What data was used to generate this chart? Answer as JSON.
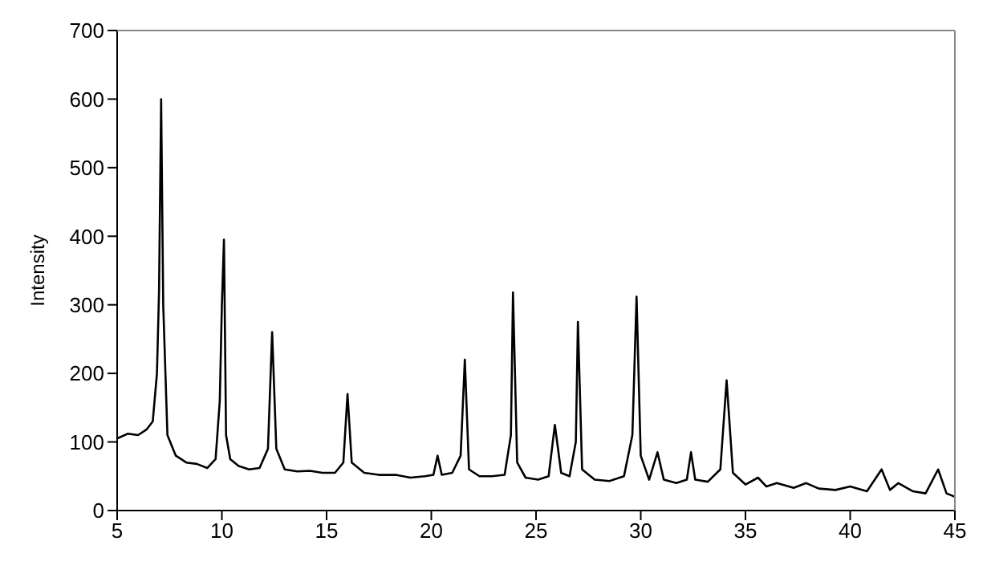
{
  "chart_data": {
    "type": "line",
    "ylabel": "Intensity",
    "xlim": [
      5,
      45
    ],
    "xticks": [
      5,
      10,
      15,
      20,
      25,
      30,
      35,
      40,
      45
    ],
    "ylim": [
      0,
      700
    ],
    "yticks": [
      0,
      100,
      200,
      300,
      400,
      500,
      600,
      700
    ],
    "grid": false,
    "marker": "none",
    "line_style": "solid",
    "x": [
      5,
      5.5,
      6,
      6.4,
      6.7,
      6.9,
      7.0,
      7.1,
      7.2,
      7.4,
      7.8,
      8.3,
      8.8,
      9.3,
      9.7,
      9.9,
      10.0,
      10.1,
      10.2,
      10.4,
      10.8,
      11.3,
      11.8,
      12.2,
      12.4,
      12.6,
      13.0,
      13.6,
      14.2,
      14.8,
      15.4,
      15.8,
      16.0,
      16.2,
      16.8,
      17.5,
      18.3,
      19.0,
      19.7,
      20.1,
      20.3,
      20.5,
      21.0,
      21.4,
      21.6,
      21.8,
      22.3,
      22.9,
      23.5,
      23.8,
      23.9,
      24.1,
      24.5,
      25.1,
      25.6,
      25.9,
      26.2,
      26.6,
      26.9,
      27.0,
      27.2,
      27.8,
      28.5,
      29.2,
      29.6,
      29.8,
      30.0,
      30.4,
      30.8,
      31.1,
      31.7,
      32.2,
      32.4,
      32.6,
      33.2,
      33.8,
      34.1,
      34.4,
      35.0,
      35.6,
      36.0,
      36.5,
      37.3,
      37.9,
      38.5,
      39.3,
      40.0,
      40.8,
      41.5,
      41.9,
      42.3,
      43.0,
      43.6,
      44.2,
      44.6,
      45
    ],
    "values": [
      105,
      112,
      110,
      118,
      130,
      200,
      320,
      600,
      300,
      110,
      80,
      70,
      68,
      62,
      75,
      160,
      300,
      395,
      110,
      75,
      65,
      60,
      62,
      90,
      260,
      90,
      60,
      57,
      58,
      55,
      55,
      70,
      170,
      70,
      55,
      52,
      52,
      48,
      50,
      52,
      80,
      52,
      55,
      80,
      220,
      60,
      50,
      50,
      52,
      110,
      318,
      70,
      48,
      45,
      50,
      125,
      55,
      50,
      100,
      275,
      60,
      45,
      43,
      50,
      110,
      312,
      80,
      45,
      85,
      45,
      40,
      45,
      85,
      45,
      42,
      60,
      190,
      55,
      38,
      48,
      35,
      40,
      33,
      40,
      32,
      30,
      35,
      28,
      60,
      30,
      40,
      28,
      25,
      60,
      25,
      20
    ]
  }
}
